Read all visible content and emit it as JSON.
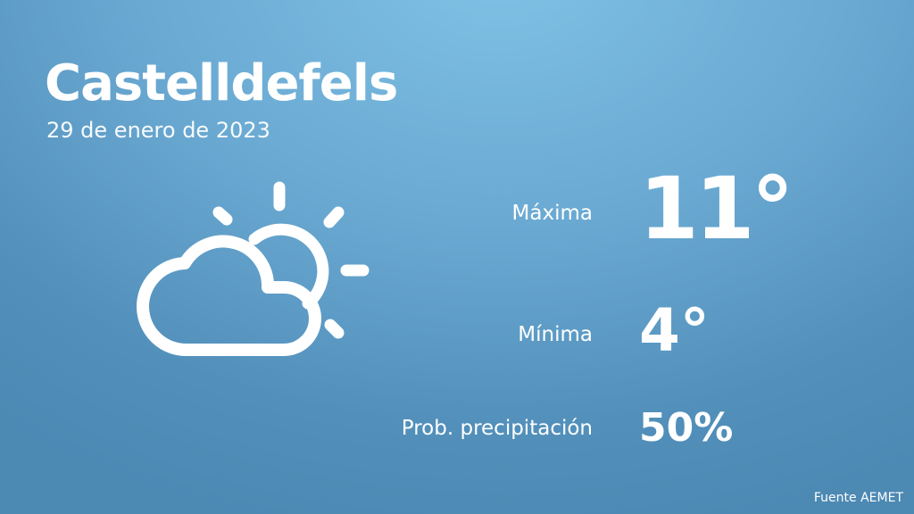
{
  "city": "Castelldefels",
  "date": "29 de enero de 2023",
  "icon": "partly-cloudy-icon",
  "stats": {
    "max_label": "Máxima",
    "max_value": "11°",
    "min_label": "Mínima",
    "min_value": "4°",
    "precip_label": "Prob. precipitación",
    "precip_value": "50%"
  },
  "source": "Fuente AEMET",
  "colors": {
    "background_top": "#80c2e6",
    "background_bottom": "#4c89b3",
    "text": "#ffffff"
  }
}
